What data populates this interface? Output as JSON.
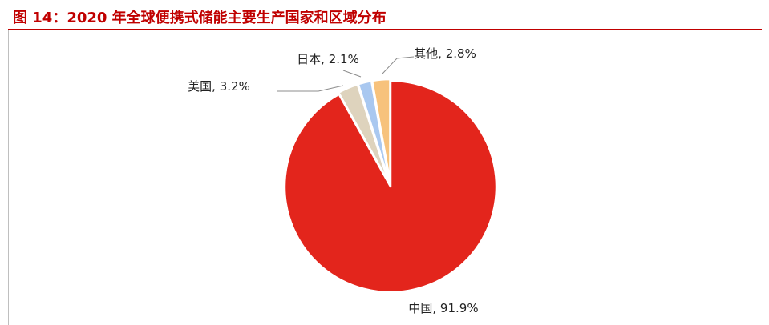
{
  "title": "图 14：2020 年全球便携式储能主要生产国家和区域分布",
  "colors": {
    "title": "#c00000",
    "rule": "#c00000",
    "leader_line": "#8c8c8c"
  },
  "chart_data": {
    "type": "pie",
    "title": "",
    "start": "top",
    "direction": "clockwise",
    "exploded": true,
    "categories": [
      "中国",
      "美国",
      "日本",
      "其他"
    ],
    "values": [
      91.9,
      3.2,
      2.1,
      2.8
    ],
    "unit": "%",
    "colors": [
      "#e3251c",
      "#ded3bd",
      "#a9c8f0",
      "#f7c27c"
    ],
    "labels": [
      "中国, 91.9%",
      "美国, 3.2%",
      "日本, 2.1%",
      "其他, 2.8%"
    ]
  }
}
